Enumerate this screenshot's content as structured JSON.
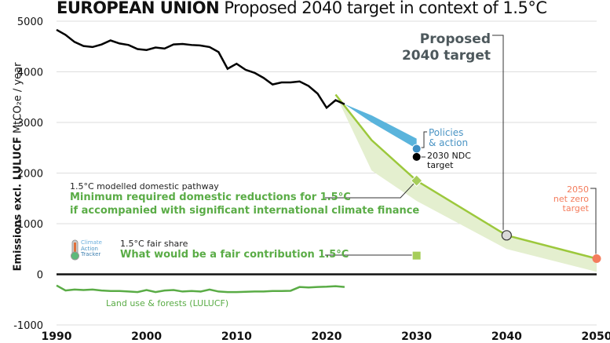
{
  "title": {
    "bold": "EUROPEAN UNION",
    "rest": "Proposed 2040 target in context of 1.5°C"
  },
  "logo": {
    "lines": [
      "Climate",
      "Action",
      "Tracker"
    ],
    "icon": "thermometer-icon"
  },
  "colors": {
    "historical": "#000000",
    "policies": "#5ab4dc",
    "policies_dot": "#3d8fc4",
    "pathway": "#9cc83c",
    "pathway_band": "#e4efcf",
    "fair_share": "#a6cd5a",
    "lulucf": "#5aac46",
    "net_zero": "#f47c5c",
    "target_dot": "#d9d9d9",
    "label_green": "#5aac46",
    "label_blue": "#4a94c4",
    "label_gray": "#4d585c"
  },
  "chart_data": {
    "type": "line",
    "ylabel_bold": "Emissions excl. LULUCF",
    "ylabel_rest": "MtCO₂e / year",
    "xlim": [
      1990,
      2050
    ],
    "ylim": [
      -1000,
      5000
    ],
    "xticks": [
      "1990",
      "2000",
      "2010",
      "2020",
      "2030",
      "2040",
      "2050"
    ],
    "yticks": [
      "5000",
      "4000",
      "3000",
      "2000",
      "1000",
      "0",
      "-1000"
    ],
    "grid": true,
    "historical": {
      "x": [
        1990,
        1991,
        1992,
        1993,
        1994,
        1995,
        1996,
        1997,
        1998,
        1999,
        2000,
        2001,
        2002,
        2003,
        2004,
        2005,
        2006,
        2007,
        2008,
        2009,
        2010,
        2011,
        2012,
        2013,
        2014,
        2015,
        2016,
        2017,
        2018,
        2019,
        2020,
        2021,
        2022
      ],
      "y": [
        4830,
        4730,
        4590,
        4510,
        4490,
        4540,
        4620,
        4560,
        4530,
        4450,
        4430,
        4480,
        4460,
        4540,
        4550,
        4530,
        4520,
        4490,
        4390,
        4060,
        4160,
        4040,
        3980,
        3880,
        3750,
        3790,
        3790,
        3810,
        3720,
        3570,
        3290,
        3440,
        3360
      ]
    },
    "lulucf": {
      "label": "Land use & forests (LULUCF)",
      "x": [
        1990,
        1991,
        1992,
        1993,
        1994,
        1995,
        1996,
        1997,
        1998,
        1999,
        2000,
        2001,
        2002,
        2003,
        2004,
        2005,
        2006,
        2007,
        2008,
        2009,
        2010,
        2011,
        2012,
        2013,
        2014,
        2015,
        2016,
        2017,
        2018,
        2019,
        2020,
        2021,
        2022
      ],
      "y": [
        -220,
        -320,
        -300,
        -310,
        -300,
        -320,
        -330,
        -330,
        -340,
        -350,
        -310,
        -350,
        -320,
        -310,
        -340,
        -330,
        -340,
        -300,
        -340,
        -350,
        -350,
        -345,
        -340,
        -340,
        -330,
        -330,
        -325,
        -250,
        -260,
        -250,
        -245,
        -235,
        -250
      ]
    },
    "policies_and_action": {
      "label": "Policies\n& action",
      "x": [
        2022,
        2025,
        2030
      ],
      "upper": [
        3360,
        3140,
        2680
      ],
      "lower": [
        3360,
        3000,
        2480
      ]
    },
    "ndc_2030": {
      "label": "2030 NDC\ntarget",
      "x": 2030,
      "y": 2320
    },
    "modelled_pathway": {
      "label_small": "1.5°C modelled domestic pathway",
      "label_1": "Minimum required domestic reductions for 1.5°C",
      "label_2": "if accompanied with significant international climate finance",
      "x": [
        2021,
        2025,
        2030,
        2040,
        2050
      ],
      "y": [
        3550,
        2650,
        1850,
        770,
        310
      ],
      "band_lower": [
        3550,
        2050,
        1450,
        500,
        50
      ]
    },
    "fair_share": {
      "label_small": "1.5°C fair share",
      "label": "What would be a fair contribution 1.5°C",
      "x": 2030,
      "y": 370
    },
    "proposed_2040": {
      "label_1": "Proposed",
      "label_2": "2040 target",
      "x": 2040,
      "y": 770
    },
    "net_zero_2050": {
      "label_1": "2050",
      "label_2": "net zero",
      "label_3": "target",
      "x": 2050,
      "y": 310
    }
  }
}
